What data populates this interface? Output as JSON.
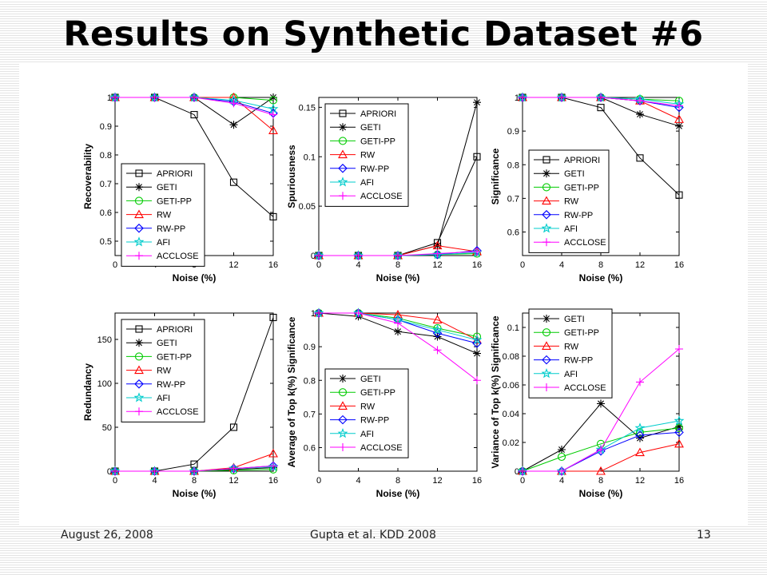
{
  "slide": {
    "title": "Results on Synthetic Dataset #6",
    "footer_left": "August 26, 2008",
    "footer_center": "Gupta et al. KDD 2008",
    "footer_right": "13"
  },
  "series_styles": {
    "APRIORI": {
      "color": "#000000",
      "marker": "square"
    },
    "GETI": {
      "color": "#000000",
      "marker": "asterisk"
    },
    "GETI-PP": {
      "color": "#00cc00",
      "marker": "circle"
    },
    "RW": {
      "color": "#ff0000",
      "marker": "triangle"
    },
    "RW-PP": {
      "color": "#0000ff",
      "marker": "diamond"
    },
    "AFI": {
      "color": "#00cccc",
      "marker": "star"
    },
    "ACCLOSE": {
      "color": "#ff00ff",
      "marker": "plus"
    }
  },
  "chart_data": [
    {
      "type": "line",
      "xlabel": "Noise (%)",
      "ylabel": "Recoverability",
      "x": [
        0,
        4,
        8,
        12,
        16
      ],
      "xticks": [
        "0",
        "4",
        "8",
        "12",
        "16"
      ],
      "ylim": [
        0.45,
        1.0
      ],
      "yticks": [
        0.5,
        0.6,
        0.7,
        0.8,
        0.9,
        1
      ],
      "ytick_labels": [
        "0.5",
        "0.6",
        "0.7",
        "0.8",
        "0.9",
        "1"
      ],
      "legend_position": "bottom-left",
      "series": [
        {
          "name": "APRIORI",
          "values": [
            1.0,
            1.0,
            0.94,
            0.705,
            0.585
          ]
        },
        {
          "name": "GETI",
          "values": [
            1.0,
            1.0,
            1.0,
            0.905,
            1.0
          ]
        },
        {
          "name": "GETI-PP",
          "values": [
            1.0,
            1.0,
            1.0,
            1.0,
            0.99
          ]
        },
        {
          "name": "RW",
          "values": [
            1.0,
            1.0,
            1.0,
            1.0,
            0.885
          ]
        },
        {
          "name": "RW-PP",
          "values": [
            1.0,
            1.0,
            1.0,
            0.985,
            0.945
          ]
        },
        {
          "name": "AFI",
          "values": [
            1.0,
            1.0,
            1.0,
            0.99,
            0.96
          ]
        },
        {
          "name": "ACCLOSE",
          "values": [
            1.0,
            1.0,
            1.0,
            0.98,
            0.94
          ]
        }
      ]
    },
    {
      "type": "line",
      "xlabel": "Noise (%)",
      "ylabel": "Spuriousness",
      "x": [
        0,
        4,
        8,
        12,
        16
      ],
      "xticks": [
        "0",
        "4",
        "8",
        "12",
        "16"
      ],
      "ylim": [
        0,
        0.16
      ],
      "yticks": [
        0,
        0.05,
        0.1,
        0.15
      ],
      "ytick_labels": [
        "0",
        "0.05",
        "0.1",
        "0.15"
      ],
      "legend_position": "top-left",
      "series": [
        {
          "name": "APRIORI",
          "values": [
            0,
            0,
            0,
            0.013,
            0.1
          ]
        },
        {
          "name": "GETI",
          "values": [
            0,
            0,
            0,
            0.01,
            0.155
          ]
        },
        {
          "name": "GETI-PP",
          "values": [
            0,
            0,
            0,
            0.001,
            0.002
          ]
        },
        {
          "name": "RW",
          "values": [
            0,
            0,
            0,
            0.01,
            0.004
          ]
        },
        {
          "name": "RW-PP",
          "values": [
            0,
            0,
            0,
            0.001,
            0.005
          ]
        },
        {
          "name": "AFI",
          "values": [
            0,
            0,
            0,
            0.001,
            0.003
          ]
        },
        {
          "name": "ACCLOSE",
          "values": [
            0,
            0,
            0,
            0.002,
            0.004
          ]
        }
      ]
    },
    {
      "type": "line",
      "xlabel": "Noise (%)",
      "ylabel": "Significance",
      "x": [
        0,
        4,
        8,
        12,
        16
      ],
      "xticks": [
        "0",
        "4",
        "8",
        "12",
        "16"
      ],
      "ylim": [
        0.53,
        1.0
      ],
      "yticks": [
        0.6,
        0.7,
        0.8,
        0.9,
        1
      ],
      "ytick_labels": [
        "0.6",
        "0.7",
        "0.8",
        "0.9",
        "1"
      ],
      "legend_position": "bottom-left",
      "series": [
        {
          "name": "APRIORI",
          "values": [
            1.0,
            1.0,
            0.97,
            0.82,
            0.71
          ]
        },
        {
          "name": "GETI",
          "values": [
            1.0,
            1.0,
            1.0,
            0.95,
            0.915
          ]
        },
        {
          "name": "GETI-PP",
          "values": [
            1.0,
            1.0,
            1.0,
            0.995,
            0.99
          ]
        },
        {
          "name": "RW",
          "values": [
            1.0,
            1.0,
            1.0,
            0.99,
            0.935
          ]
        },
        {
          "name": "RW-PP",
          "values": [
            1.0,
            1.0,
            1.0,
            0.99,
            0.97
          ]
        },
        {
          "name": "AFI",
          "values": [
            1.0,
            1.0,
            1.0,
            0.995,
            0.98
          ]
        },
        {
          "name": "ACCLOSE",
          "values": [
            1.0,
            1.0,
            1.0,
            0.99,
            0.975
          ]
        }
      ]
    },
    {
      "type": "line",
      "xlabel": "Noise (%)",
      "ylabel": "Redundancy",
      "x": [
        0,
        4,
        8,
        12,
        16
      ],
      "xticks": [
        "0",
        "4",
        "8",
        "12",
        "16"
      ],
      "ylim": [
        0,
        180
      ],
      "yticks": [
        0,
        50,
        100,
        150
      ],
      "ytick_labels": [
        "0",
        "50",
        "100",
        "150"
      ],
      "legend_position": "top-left",
      "series": [
        {
          "name": "APRIORI",
          "values": [
            0,
            0,
            8,
            50,
            175
          ]
        },
        {
          "name": "GETI",
          "values": [
            0,
            0,
            0,
            2,
            4
          ]
        },
        {
          "name": "GETI-PP",
          "values": [
            0,
            0,
            0,
            1,
            2
          ]
        },
        {
          "name": "RW",
          "values": [
            0,
            0,
            0,
            4,
            20
          ]
        },
        {
          "name": "RW-PP",
          "values": [
            0,
            0,
            0,
            3,
            6
          ]
        },
        {
          "name": "AFI",
          "values": [
            0,
            0,
            0,
            3,
            5
          ]
        },
        {
          "name": "ACCLOSE",
          "values": [
            0,
            0,
            0,
            3,
            6
          ]
        }
      ]
    },
    {
      "type": "line",
      "xlabel": "Noise (%)",
      "ylabel": "Average of Top k(%) Significance",
      "x": [
        0,
        4,
        8,
        12,
        16
      ],
      "xticks": [
        "0",
        "4",
        "8",
        "12",
        "16"
      ],
      "ylim": [
        0.53,
        1.0
      ],
      "yticks": [
        0.6,
        0.7,
        0.8,
        0.9,
        1
      ],
      "ytick_labels": [
        "0.6",
        "0.7",
        "0.8",
        "0.9",
        "1"
      ],
      "legend_position": "bottom-left",
      "series": [
        {
          "name": "GETI",
          "values": [
            1.0,
            0.99,
            0.945,
            0.93,
            0.88
          ]
        },
        {
          "name": "GETI-PP",
          "values": [
            1.0,
            1.0,
            0.985,
            0.955,
            0.93
          ]
        },
        {
          "name": "RW",
          "values": [
            1.0,
            1.0,
            0.995,
            0.98,
            0.92
          ]
        },
        {
          "name": "RW-PP",
          "values": [
            1.0,
            1.0,
            0.98,
            0.94,
            0.91
          ]
        },
        {
          "name": "AFI",
          "values": [
            1.0,
            1.0,
            0.98,
            0.95,
            0.92
          ]
        },
        {
          "name": "ACCLOSE",
          "values": [
            1.0,
            1.0,
            0.97,
            0.89,
            0.8
          ]
        }
      ]
    },
    {
      "type": "line",
      "xlabel": "Noise (%)",
      "ylabel": "Variance of Top k(%) Significance",
      "x": [
        0,
        4,
        8,
        12,
        16
      ],
      "xticks": [
        "0",
        "4",
        "8",
        "12",
        "16"
      ],
      "ylim": [
        0,
        0.11
      ],
      "yticks": [
        0,
        0.02,
        0.04,
        0.06,
        0.08,
        0.1
      ],
      "ytick_labels": [
        "0",
        "0.02",
        "0.04",
        "0.06",
        "0.08",
        "0.1"
      ],
      "legend_position": "top-left",
      "series": [
        {
          "name": "GETI",
          "values": [
            0,
            0.015,
            0.047,
            0.023,
            0.031
          ]
        },
        {
          "name": "GETI-PP",
          "values": [
            0,
            0.01,
            0.019,
            0.027,
            0.03
          ]
        },
        {
          "name": "RW",
          "values": [
            0,
            0,
            0,
            0.013,
            0.019
          ]
        },
        {
          "name": "RW-PP",
          "values": [
            0,
            0,
            0.014,
            0.025,
            0.027
          ]
        },
        {
          "name": "AFI",
          "values": [
            0,
            0,
            0.015,
            0.03,
            0.035
          ]
        },
        {
          "name": "ACCLOSE",
          "values": [
            0,
            0,
            0.015,
            0.062,
            0.085
          ]
        }
      ]
    }
  ]
}
